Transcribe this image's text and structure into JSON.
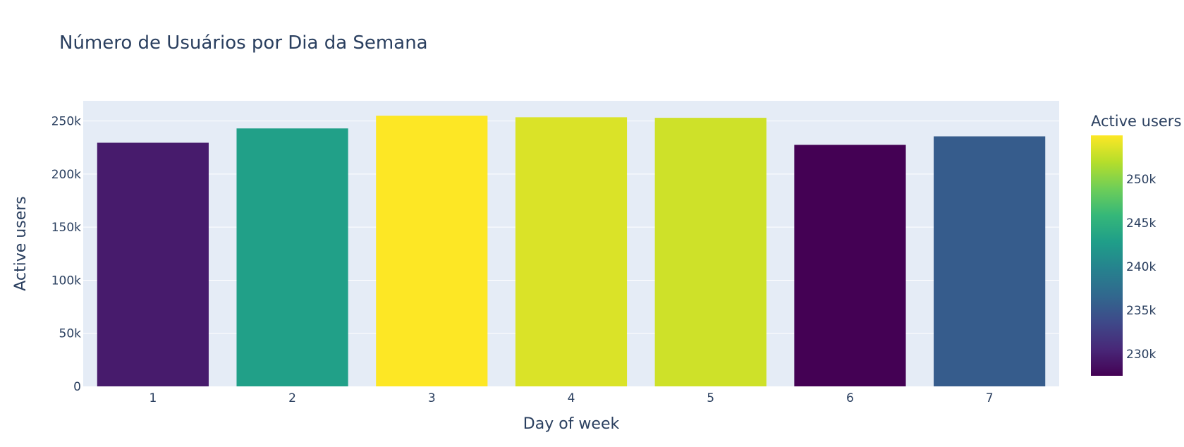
{
  "chart_data": {
    "type": "bar",
    "title": "Número de Usuários por Dia da Semana",
    "xlabel": "Day of week",
    "ylabel": "Active users",
    "categories": [
      "1",
      "2",
      "3",
      "4",
      "5",
      "6",
      "7"
    ],
    "values": [
      229500,
      243000,
      255000,
      253500,
      253000,
      227500,
      235500
    ],
    "ylim": [
      0,
      269000
    ],
    "yticks": [
      0,
      50000,
      100000,
      150000,
      200000,
      250000
    ],
    "ytick_labels": [
      "0",
      "50k",
      "100k",
      "150k",
      "200k",
      "250k"
    ],
    "grid": true,
    "plot_background": "#e5ecf6",
    "colorscale": "Viridis",
    "colorscale_stops": [
      "#440154",
      "#482878",
      "#3e4989",
      "#31688e",
      "#26828e",
      "#1f9e89",
      "#35b779",
      "#6ece58",
      "#b5de2b",
      "#fde725"
    ],
    "colorbar": {
      "title": "Active users",
      "range": [
        227500,
        255000
      ],
      "ticks": [
        230000,
        235000,
        240000,
        245000,
        250000
      ],
      "tick_labels": [
        "230k",
        "235k",
        "240k",
        "245k",
        "250k"
      ],
      "placement": "right"
    }
  }
}
